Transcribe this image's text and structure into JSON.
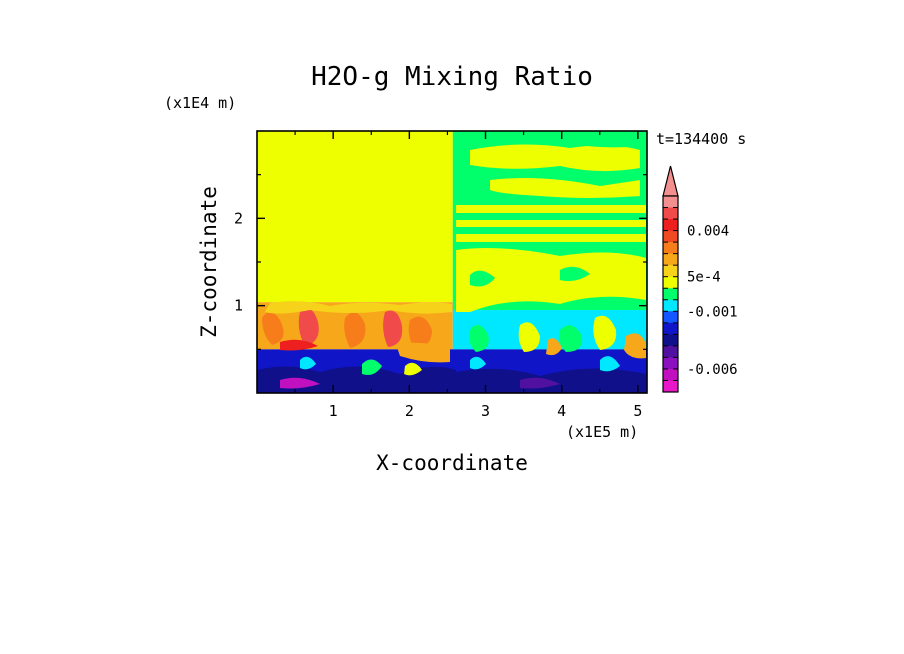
{
  "chart_data": {
    "type": "heatmap",
    "title": "H2O-g Mixing Ratio",
    "xlabel": "X-coordinate",
    "ylabel": "Z-coordinate",
    "x_scale_label": "(x1E5 m)",
    "y_scale_label": "(x1E4 m)",
    "time_label": "t=134400 s",
    "xlim": [
      0,
      5.12
    ],
    "ylim": [
      0,
      3.0
    ],
    "x_ticks": [
      1,
      2,
      3,
      4,
      5
    ],
    "x_tick_labels": [
      "1",
      "2",
      "3",
      "4",
      "5"
    ],
    "y_ticks": [
      1,
      2
    ],
    "y_tick_labels": [
      "1",
      "2"
    ],
    "colorbar": {
      "extend": "max",
      "labels": [
        {
          "text": "0.004",
          "value": 0.004
        },
        {
          "text": "5e-4",
          "value": 0.0005
        },
        {
          "text": "-0.001",
          "value": -0.001
        },
        {
          "text": "-0.006",
          "value": -0.006
        }
      ],
      "bands": [
        {
          "upper": null,
          "color": "#f38f8f"
        },
        {
          "upper": 0.006,
          "color": "#f04a4a"
        },
        {
          "upper": 0.005,
          "color": "#ee1f1f"
        },
        {
          "upper": 0.004,
          "color": "#ef4a22"
        },
        {
          "upper": 0.003,
          "color": "#f67d1a"
        },
        {
          "upper": 0.002,
          "color": "#f7a71a"
        },
        {
          "upper": 0.001,
          "color": "#f7d21a"
        },
        {
          "upper": 0.0005,
          "color": "#eeff00"
        },
        {
          "upper": 0.0,
          "color": "#00ff6a"
        },
        {
          "upper": -0.0005,
          "color": "#00e8ff"
        },
        {
          "upper": -0.001,
          "color": "#1456ff"
        },
        {
          "upper": -0.002,
          "color": "#1016c8"
        },
        {
          "upper": -0.003,
          "color": "#10108a"
        },
        {
          "upper": -0.004,
          "color": "#5010a0"
        },
        {
          "upper": -0.005,
          "color": "#8a10c0"
        },
        {
          "upper": -0.006,
          "color": "#c010c0"
        },
        {
          "upper": -0.008,
          "color": "#e818c8"
        }
      ]
    },
    "regions": [
      {
        "name": "upper-left",
        "x": [
          0,
          2.57
        ],
        "z": [
          1.04,
          3.0
        ],
        "color": "#eeff00"
      },
      {
        "name": "upper-right",
        "x": [
          2.57,
          5.12
        ],
        "z": [
          0.95,
          3.0
        ],
        "color": "#00ff6a"
      },
      {
        "name": "lower-left-mid",
        "x": [
          0,
          2.57
        ],
        "z": [
          0.5,
          1.04
        ],
        "color": "#f7a71a"
      },
      {
        "name": "lower-right-mid",
        "x": [
          2.57,
          5.12
        ],
        "z": [
          0.5,
          0.95
        ],
        "color": "#00e8ff"
      },
      {
        "name": "bottom",
        "x": [
          0,
          5.12
        ],
        "z": [
          0,
          0.5
        ],
        "color": "#1016c8"
      }
    ]
  }
}
